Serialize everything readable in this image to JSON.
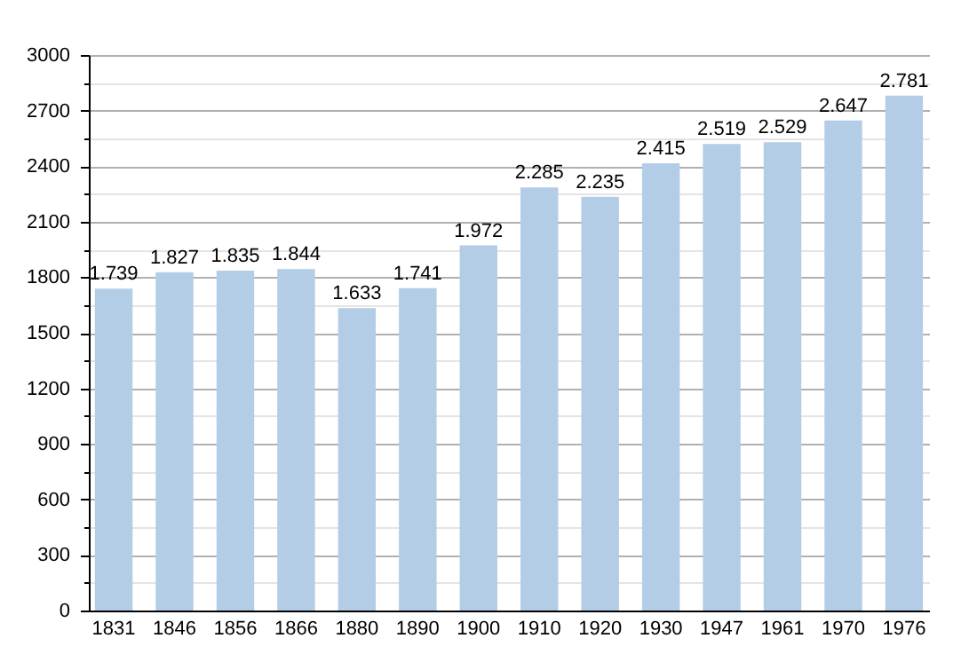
{
  "chart_data": {
    "type": "bar",
    "categories": [
      "1831",
      "1846",
      "1856",
      "1866",
      "1880",
      "1890",
      "1900",
      "1910",
      "1920",
      "1930",
      "1947",
      "1961",
      "1970",
      "1976"
    ],
    "values": [
      1739,
      1827,
      1835,
      1844,
      1633,
      1741,
      1972,
      2285,
      2235,
      2415,
      2519,
      2529,
      2647,
      2781
    ],
    "value_labels": [
      "1.739",
      "1.827",
      "1.835",
      "1.844",
      "1.633",
      "1.741",
      "1.972",
      "2.285",
      "2.235",
      "2.415",
      "2.519",
      "2.529",
      "2.647",
      "2.781"
    ],
    "color": "#b3cde6",
    "ylim": [
      0,
      3000
    ],
    "yticks": [
      0,
      {
        "value": 150,
        "label": null
      },
      300,
      {
        "value": 450,
        "label": null
      },
      600,
      {
        "value": 750,
        "label": null
      },
      900,
      {
        "value": 1050,
        "label": null
      },
      1200,
      {
        "value": 1350,
        "label": null
      },
      1500,
      {
        "value": 1650,
        "label": null
      },
      1800,
      {
        "value": 1950,
        "label": null
      },
      2100,
      {
        "value": 2250,
        "label": null
      },
      2400,
      {
        "value": 2550,
        "label": null
      },
      2700,
      {
        "value": 2850,
        "label": null
      },
      3000
    ],
    "grid": "y"
  }
}
